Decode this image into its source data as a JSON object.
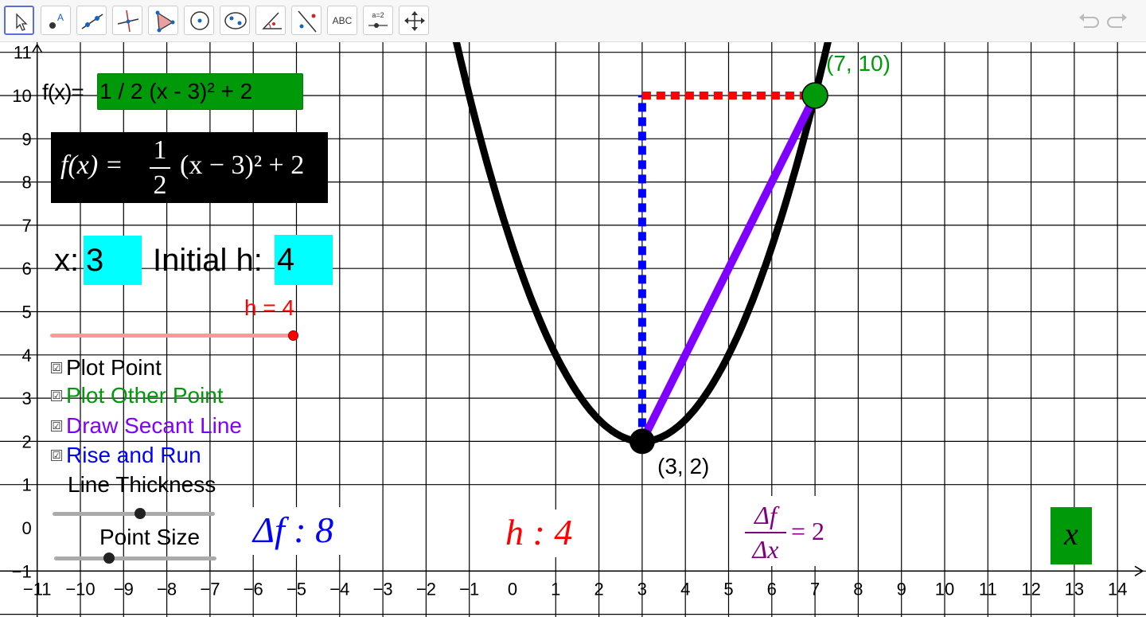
{
  "toolbar": {
    "tools": [
      {
        "name": "move-tool",
        "icon": "arrow-cursor-icon",
        "active": true
      },
      {
        "name": "point-tool",
        "icon": "point-icon"
      },
      {
        "name": "line-tool",
        "icon": "line-icon"
      },
      {
        "name": "perpendicular-tool",
        "icon": "perpendicular-icon"
      },
      {
        "name": "polygon-tool",
        "icon": "polygon-icon"
      },
      {
        "name": "circle-center-tool",
        "icon": "circle-icon"
      },
      {
        "name": "ellipse-tool",
        "icon": "ellipse-icon"
      },
      {
        "name": "angle-tool",
        "icon": "angle-icon"
      },
      {
        "name": "reflect-tool",
        "icon": "reflect-icon"
      },
      {
        "name": "text-tool",
        "icon": "text-icon",
        "label": "ABC"
      },
      {
        "name": "slider-tool",
        "icon": "slider-icon",
        "label": "a=2"
      },
      {
        "name": "move-graphics-tool",
        "icon": "move-arrows-icon"
      }
    ],
    "undo_icon": "undo-icon",
    "redo_icon": "redo-icon"
  },
  "panel": {
    "fx_label": "f(x)=",
    "fx_value": "1 / 2 (x - 3)² + 2",
    "formula": {
      "lhs": "f(x) =",
      "num": "1",
      "den": "2",
      "rhs": "(x − 3)² + 2"
    },
    "x_label": "x:",
    "x_value": "3",
    "h_label": "Initial h:",
    "h_value": "4",
    "h_slider_caption": "h = 4",
    "checkboxes": [
      {
        "label": "Plot Point",
        "checked": true,
        "color": "#000000"
      },
      {
        "label": "Plot Other Point",
        "checked": true,
        "color": "#00990a"
      },
      {
        "label": "Draw Secant Line",
        "checked": true,
        "color": "#7f00ff"
      },
      {
        "label": "Rise and Run",
        "checked": true,
        "color": "#0000ff"
      }
    ],
    "line_thickness_label": "Line Thickness",
    "point_size_label": "Point Size",
    "check_mark": "☑"
  },
  "readouts": {
    "delta_f": "Δf : 8",
    "h": "h : 4",
    "ratio": {
      "num": "Δf",
      "den": "Δx",
      "value": "= 2"
    },
    "x_button": "x"
  },
  "chart_data": {
    "type": "line",
    "function": "1 / 2 (x - 3)² + 2",
    "xlim": [
      -11,
      14
    ],
    "ylim": [
      -1,
      11
    ],
    "x_ticks": [
      -11,
      -10,
      -9,
      -8,
      -7,
      -6,
      -5,
      -4,
      -3,
      -2,
      -1,
      0,
      1,
      2,
      3,
      4,
      5,
      6,
      7,
      8,
      9,
      10,
      11,
      12,
      13,
      14
    ],
    "y_ticks": [
      -1,
      0,
      1,
      2,
      3,
      4,
      5,
      6,
      7,
      8,
      9,
      10,
      11
    ],
    "grid": true,
    "points": [
      {
        "x": 3,
        "y": 2,
        "label": "(3, 2)",
        "color": "#000000"
      },
      {
        "x": 7,
        "y": 10,
        "label": "(7, 10)",
        "color": "#00990a"
      }
    ],
    "secant_color": "#7f00ff",
    "rise_color": "#0000ff",
    "run_color": "#ff0000",
    "curve_color": "#000000",
    "h": 4,
    "h_range": [
      0,
      4
    ],
    "line_thickness_fraction": 0.54,
    "point_size_fraction": 0.34
  }
}
